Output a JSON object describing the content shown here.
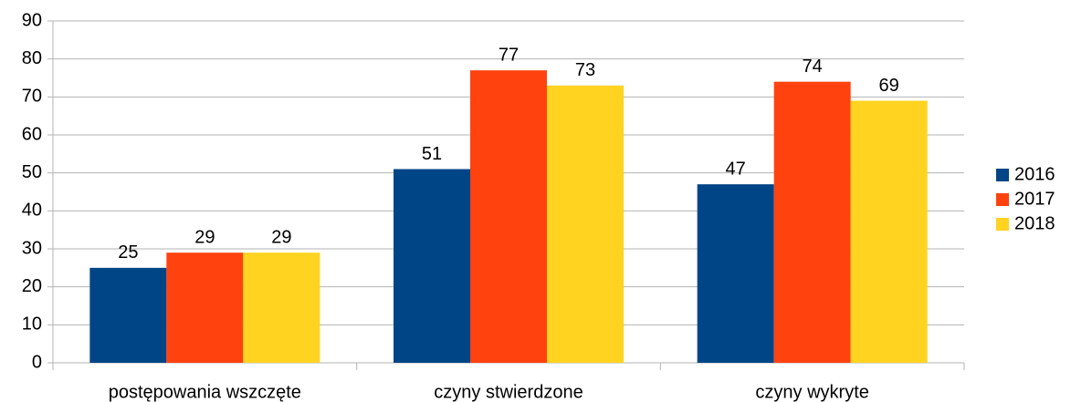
{
  "chart_data": {
    "type": "bar",
    "categories": [
      "postępowania wszczęte",
      "czyny stwierdzone",
      "czyny wykryte"
    ],
    "series": [
      {
        "name": "2016",
        "color": "#004586",
        "values": [
          25,
          51,
          47
        ]
      },
      {
        "name": "2017",
        "color": "#ff420e",
        "values": [
          29,
          77,
          74
        ]
      },
      {
        "name": "2018",
        "color": "#ffd320",
        "values": [
          29,
          73,
          69
        ]
      }
    ],
    "ylim": [
      0,
      90
    ],
    "yticks": [
      0,
      10,
      20,
      30,
      40,
      50,
      60,
      70,
      80,
      90
    ],
    "grid": true,
    "legend": "right"
  }
}
